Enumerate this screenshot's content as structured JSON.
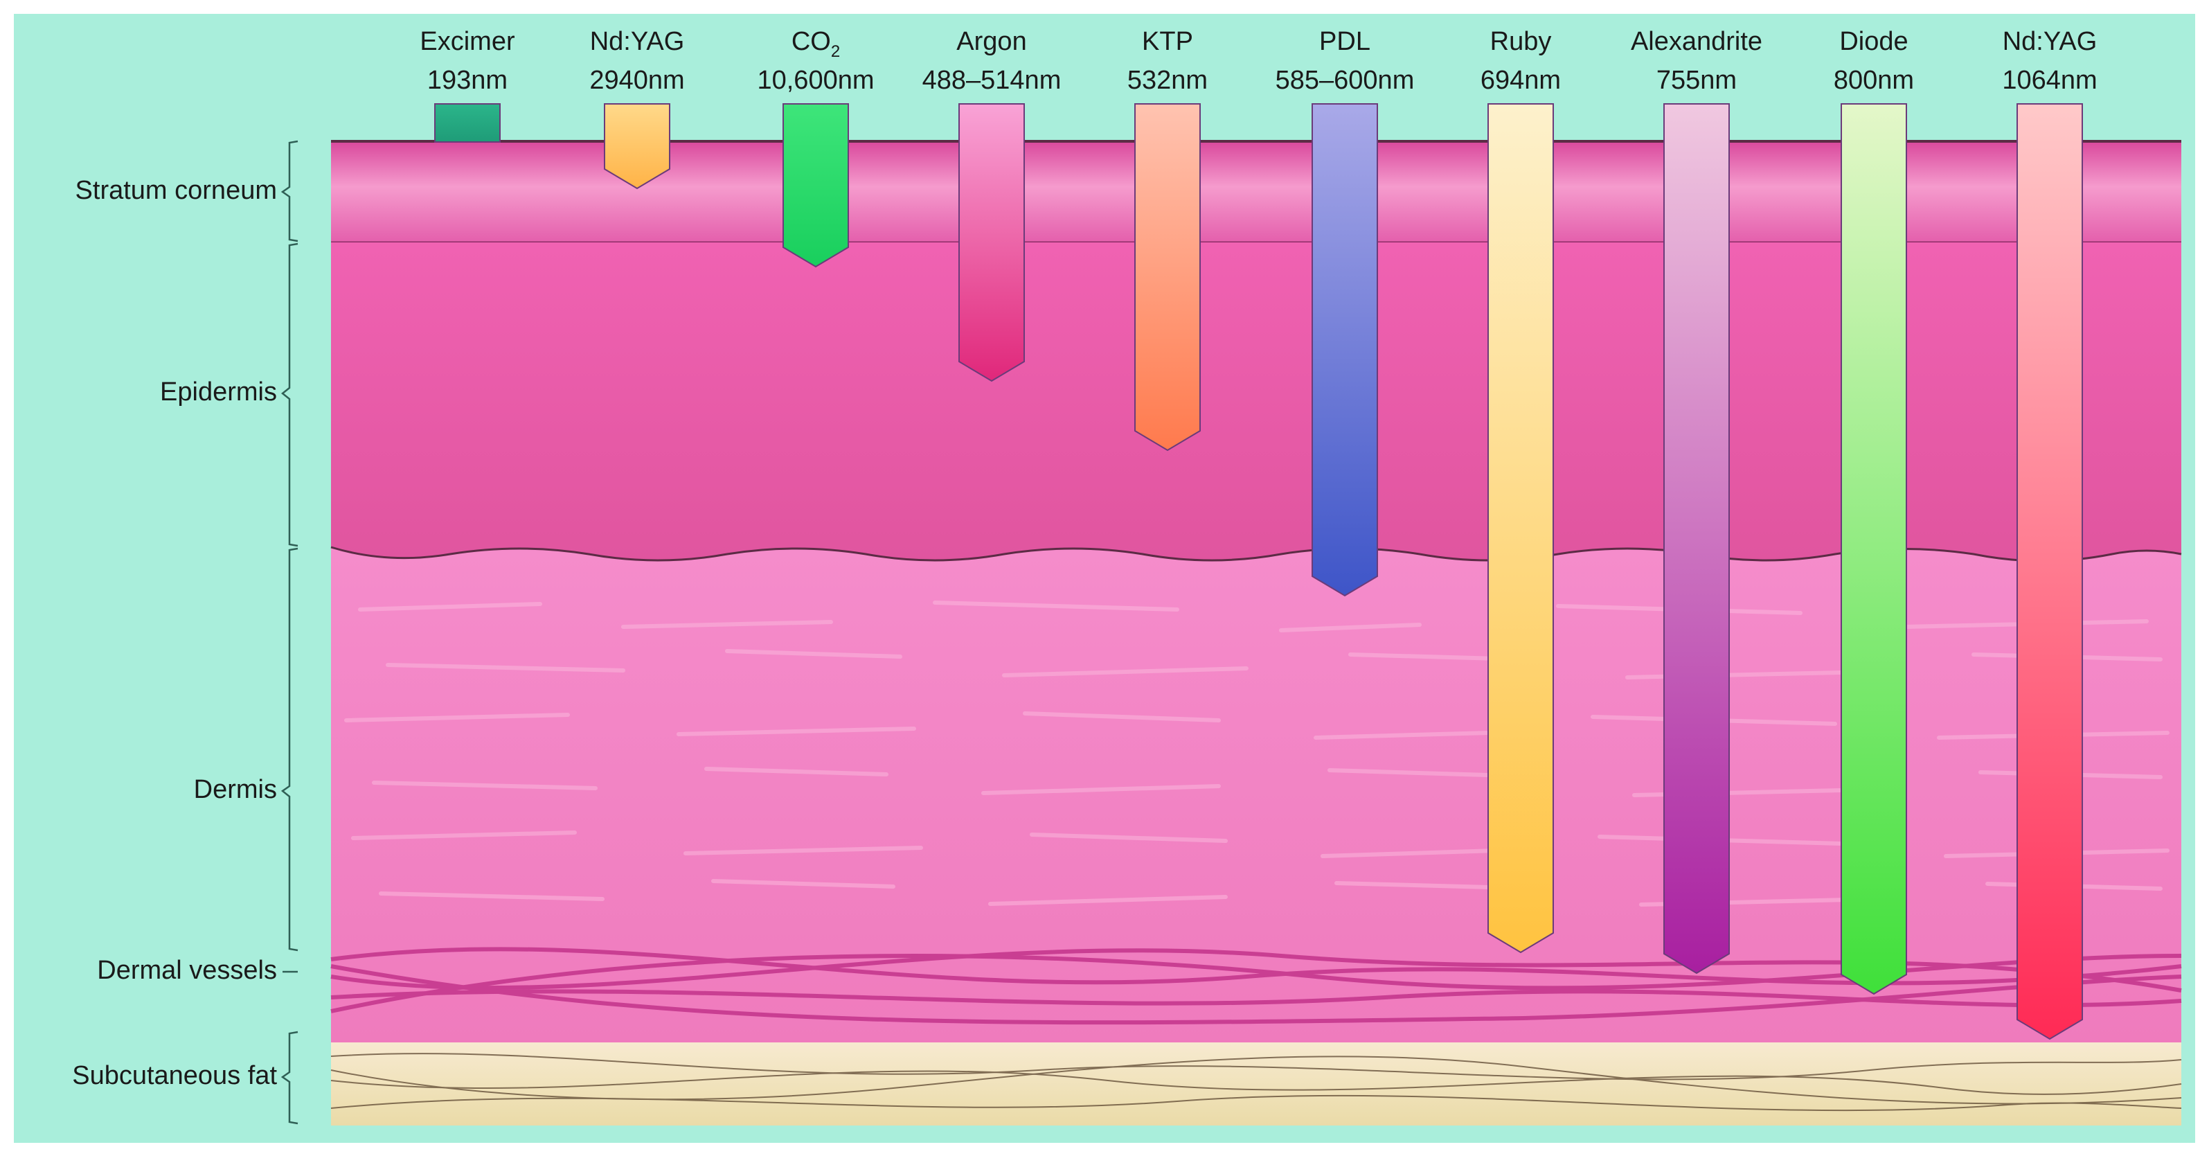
{
  "colors": {
    "background": "#a9eedb",
    "stratum_corneum": "#e45fac",
    "epidermis": "#e85aa9",
    "dermis": "#f27fc0",
    "subcutaneous_fat": "#f3e3b6",
    "vessel": "#c93e92"
  },
  "layers": [
    {
      "key": "stratum_corneum",
      "label": "Stratum corneum"
    },
    {
      "key": "epidermis",
      "label": "Epidermis"
    },
    {
      "key": "dermis",
      "label": "Dermis"
    },
    {
      "key": "dermal_vessels",
      "label": "Dermal vessels"
    },
    {
      "key": "subcutaneous_fat",
      "label": "Subcutaneous fat"
    }
  ],
  "lasers": [
    {
      "name": "Excimer",
      "wavelength": "193nm",
      "depth_layer": "surface (above stratum corneum)",
      "colors": [
        "#2bb58a",
        "#1f9c78"
      ],
      "icon": "short-bar"
    },
    {
      "name": "Nd:YAG",
      "wavelength": "2940nm",
      "depth_layer": "stratum corneum",
      "colors": [
        "#ffd98a",
        "#ffb347"
      ]
    },
    {
      "name": "CO",
      "name_subscript": "2",
      "wavelength": "10,600nm",
      "depth_layer": "stratum corneum",
      "colors": [
        "#3ee57a",
        "#19cf5d"
      ]
    },
    {
      "name": "Argon",
      "wavelength": "488–514nm",
      "depth_layer": "epidermis",
      "colors": [
        "#f9a3d6",
        "#e0277a"
      ]
    },
    {
      "name": "KTP",
      "wavelength": "532nm",
      "depth_layer": "epidermis",
      "colors": [
        "#ffc3b0",
        "#ff7a4d"
      ]
    },
    {
      "name": "PDL",
      "wavelength": "585–600nm",
      "depth_layer": "upper dermis",
      "colors": [
        "#a9a9e8",
        "#3e55c8"
      ]
    },
    {
      "name": "Ruby",
      "wavelength": "694nm",
      "depth_layer": "dermis",
      "colors": [
        "#fdf1cc",
        "#ffc340"
      ]
    },
    {
      "name": "Alexandrite",
      "wavelength": "755nm",
      "depth_layer": "dermis",
      "colors": [
        "#f0c8e0",
        "#a81fa0"
      ]
    },
    {
      "name": "Diode",
      "wavelength": "800nm",
      "depth_layer": "dermal vessels",
      "colors": [
        "#e4f7c9",
        "#3fe03a"
      ]
    },
    {
      "name": "Nd:YAG",
      "wavelength": "1064nm",
      "depth_layer": "lower dermis",
      "colors": [
        "#ffc9c9",
        "#ff2a55"
      ]
    }
  ]
}
